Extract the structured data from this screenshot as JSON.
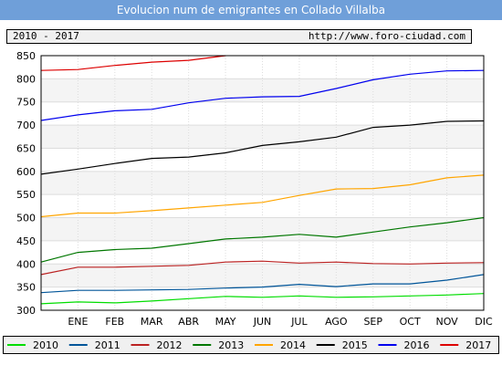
{
  "title": "Evolucion num de emigrantes en Collado Villalba",
  "period": "2010 - 2017",
  "url": "http://www.foro-ciudad.com",
  "chart_data": {
    "type": "line",
    "title": "Evolucion num de emigrantes en Collado Villalba",
    "categories": [
      "",
      "ENE",
      "FEB",
      "MAR",
      "ABR",
      "MAY",
      "JUN",
      "JUL",
      "AGO",
      "SEP",
      "OCT",
      "NOV",
      "DIC"
    ],
    "ylim": [
      300,
      850
    ],
    "yticks": [
      300,
      350,
      400,
      450,
      500,
      550,
      600,
      650,
      700,
      750,
      800,
      850
    ],
    "grid": true,
    "legend_position": "bottom",
    "series": [
      {
        "name": "2010",
        "color": "#00dd00",
        "values": [
          314,
          318,
          316,
          320,
          325,
          330,
          328,
          331,
          328,
          329,
          331,
          333,
          336
        ]
      },
      {
        "name": "2011",
        "color": "#005599",
        "values": [
          338,
          343,
          343,
          344,
          345,
          348,
          350,
          356,
          351,
          357,
          357,
          365,
          377
        ]
      },
      {
        "name": "2012",
        "color": "#bb2222",
        "values": [
          377,
          393,
          393,
          395,
          397,
          404,
          406,
          402,
          404,
          401,
          400,
          402,
          403
        ]
      },
      {
        "name": "2013",
        "color": "#007700",
        "values": [
          404,
          425,
          431,
          434,
          444,
          454,
          458,
          464,
          458,
          469,
          480,
          489,
          500
        ]
      },
      {
        "name": "2014",
        "color": "#ffa500",
        "values": [
          502,
          510,
          510,
          515,
          521,
          527,
          533,
          548,
          562,
          563,
          571,
          586,
          592
        ]
      },
      {
        "name": "2015",
        "color": "#000000",
        "values": [
          594,
          605,
          617,
          628,
          631,
          640,
          656,
          664,
          674,
          695,
          700,
          708,
          709
        ]
      },
      {
        "name": "2016",
        "color": "#0000ee",
        "values": [
          710,
          722,
          731,
          734,
          748,
          758,
          761,
          762,
          779,
          798,
          810,
          817,
          818
        ]
      },
      {
        "name": "2017",
        "color": "#dd0000",
        "values": [
          818,
          820,
          829,
          836,
          840,
          850,
          null,
          null,
          null,
          null,
          null,
          null,
          null
        ]
      }
    ]
  }
}
